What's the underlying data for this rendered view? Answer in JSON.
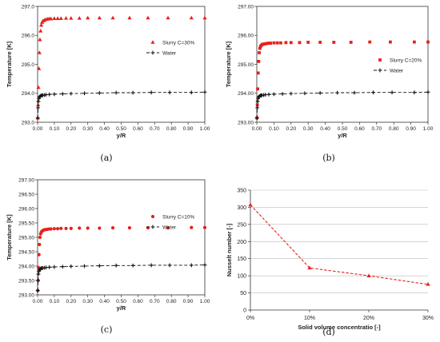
{
  "colors": {
    "slurry": "#e8201c",
    "water": "#111111",
    "axis": "#333333",
    "grid": "#bbbbbb"
  },
  "chart_data": [
    {
      "type": "scatter",
      "caption": "(a)",
      "xlabel": "y/R",
      "ylabel": "Temperature [K]",
      "xlim": [
        0,
        1
      ],
      "ylim": [
        293,
        297
      ],
      "xticks": [
        "0.00",
        "0.10",
        "0.20",
        "0.30",
        "0.40",
        "0.50",
        "0.60",
        "0.70",
        "0.80",
        "0.90",
        "1.00"
      ],
      "yticks": [
        "293.0",
        "294.0",
        "295.0",
        "296.0",
        "297.0"
      ],
      "legend_position": "right",
      "series": [
        {
          "name": "Slurry C=30%",
          "marker": "triangle",
          "x": [
            0.001,
            0.003,
            0.005,
            0.008,
            0.011,
            0.014,
            0.018,
            0.022,
            0.027,
            0.033,
            0.04,
            0.05,
            0.06,
            0.07,
            0.08,
            0.1,
            0.12,
            0.14,
            0.17,
            0.2,
            0.25,
            0.3,
            0.37,
            0.45,
            0.55,
            0.66,
            0.78,
            0.92,
            1.0
          ],
          "y": [
            293.15,
            293.6,
            294.2,
            294.85,
            295.4,
            295.85,
            296.15,
            296.35,
            296.45,
            296.5,
            296.52,
            296.55,
            296.56,
            296.57,
            296.57,
            296.58,
            296.58,
            296.58,
            296.59,
            296.59,
            296.59,
            296.6,
            296.6,
            296.6,
            296.6,
            296.6,
            296.6,
            296.6,
            296.6
          ]
        },
        {
          "name": "Water",
          "marker": "plus",
          "dashed": true,
          "x": [
            0.001,
            0.003,
            0.005,
            0.008,
            0.011,
            0.015,
            0.02,
            0.025,
            0.03,
            0.04,
            0.05,
            0.07,
            0.1,
            0.15,
            0.2,
            0.28,
            0.37,
            0.47,
            0.57,
            0.68,
            0.79,
            0.92,
            1.0
          ],
          "y": [
            293.15,
            293.5,
            293.72,
            293.82,
            293.87,
            293.9,
            293.92,
            293.93,
            293.93,
            293.94,
            293.95,
            293.96,
            293.97,
            293.98,
            293.99,
            294.0,
            294.01,
            294.02,
            294.02,
            294.03,
            294.03,
            294.03,
            294.04
          ]
        }
      ]
    },
    {
      "type": "scatter",
      "caption": "(b)",
      "xlabel": "y/R",
      "ylabel": "Temperature [K]",
      "xlim": [
        0,
        1
      ],
      "ylim": [
        293,
        297
      ],
      "xticks": [
        "0.00",
        "0.10",
        "0.20",
        "0.30",
        "0.40",
        "0.50",
        "0.60",
        "0.70",
        "0.80",
        "0.90",
        "1.00"
      ],
      "yticks": [
        "293.00",
        "294.00",
        "295.00",
        "296.00",
        "297.00"
      ],
      "legend_position": "right",
      "series": [
        {
          "name": "Slurry C=20%",
          "marker": "square",
          "x": [
            0.001,
            0.003,
            0.005,
            0.008,
            0.011,
            0.014,
            0.018,
            0.022,
            0.027,
            0.033,
            0.04,
            0.05,
            0.06,
            0.07,
            0.08,
            0.1,
            0.12,
            0.14,
            0.17,
            0.2,
            0.25,
            0.3,
            0.37,
            0.45,
            0.55,
            0.66,
            0.78,
            0.92,
            1.0
          ],
          "y": [
            293.15,
            293.6,
            294.15,
            294.7,
            295.1,
            295.4,
            295.55,
            295.62,
            295.66,
            295.69,
            295.7,
            295.71,
            295.72,
            295.73,
            295.73,
            295.74,
            295.74,
            295.74,
            295.75,
            295.75,
            295.75,
            295.76,
            295.76,
            295.76,
            295.76,
            295.77,
            295.77,
            295.77,
            295.77
          ]
        },
        {
          "name": "Water",
          "marker": "plus",
          "dashed": true,
          "x": [
            0.001,
            0.003,
            0.005,
            0.008,
            0.011,
            0.015,
            0.02,
            0.025,
            0.03,
            0.04,
            0.05,
            0.07,
            0.1,
            0.15,
            0.2,
            0.28,
            0.37,
            0.47,
            0.57,
            0.68,
            0.79,
            0.92,
            1.0
          ],
          "y": [
            293.15,
            293.5,
            293.72,
            293.82,
            293.87,
            293.9,
            293.92,
            293.93,
            293.93,
            293.94,
            293.95,
            293.96,
            293.97,
            293.98,
            293.99,
            294.0,
            294.01,
            294.02,
            294.02,
            294.03,
            294.03,
            294.03,
            294.04
          ]
        }
      ]
    },
    {
      "type": "scatter",
      "caption": "(c)",
      "xlabel": "y/R",
      "ylabel": "Temperature [K]",
      "xlim": [
        0,
        1
      ],
      "ylim": [
        293,
        297
      ],
      "xticks": [
        "0.00",
        "0.10",
        "0.20",
        "0.30",
        "0.40",
        "0.50",
        "0.60",
        "0.70",
        "0.80",
        "0.90",
        "1.00"
      ],
      "yticks": [
        "293.00",
        "293.50",
        "294.00",
        "294.50",
        "295.00",
        "295.50",
        "296.00",
        "296.50",
        "297.00"
      ],
      "legend_position": "right",
      "series": [
        {
          "name": "Slurry C=10%",
          "marker": "circle",
          "x": [
            0.001,
            0.003,
            0.005,
            0.008,
            0.011,
            0.014,
            0.018,
            0.022,
            0.027,
            0.033,
            0.04,
            0.05,
            0.06,
            0.07,
            0.08,
            0.1,
            0.12,
            0.14,
            0.17,
            0.2,
            0.25,
            0.3,
            0.37,
            0.45,
            0.55,
            0.66,
            0.78,
            0.92,
            1.0
          ],
          "y": [
            293.15,
            293.5,
            293.95,
            294.4,
            294.75,
            295.0,
            295.12,
            295.18,
            295.22,
            295.24,
            295.26,
            295.27,
            295.28,
            295.29,
            295.29,
            295.3,
            295.3,
            295.31,
            295.31,
            295.31,
            295.32,
            295.32,
            295.32,
            295.33,
            295.33,
            295.33,
            295.33,
            295.34,
            295.34
          ]
        },
        {
          "name": "Water",
          "marker": "plus",
          "dashed": true,
          "x": [
            0.001,
            0.003,
            0.005,
            0.008,
            0.011,
            0.015,
            0.02,
            0.025,
            0.03,
            0.04,
            0.05,
            0.07,
            0.1,
            0.15,
            0.2,
            0.28,
            0.37,
            0.47,
            0.57,
            0.68,
            0.79,
            0.92,
            1.0
          ],
          "y": [
            293.15,
            293.5,
            293.72,
            293.82,
            293.87,
            293.9,
            293.92,
            293.93,
            293.93,
            293.94,
            293.95,
            293.96,
            293.97,
            293.98,
            293.99,
            294.0,
            294.01,
            294.02,
            294.02,
            294.03,
            294.03,
            294.03,
            294.04
          ]
        }
      ]
    },
    {
      "type": "line",
      "caption": "(d)",
      "xlabel": "Solid volume concentratio [-]",
      "ylabel": "Nusselt number [-]",
      "categories": [
        "0%",
        "10%",
        "20%",
        "30%"
      ],
      "ylim": [
        0,
        350
      ],
      "yticks": [
        "0",
        "50",
        "100",
        "150",
        "200",
        "250",
        "300",
        "350"
      ],
      "grid": true,
      "series": [
        {
          "marker": "triangle",
          "dashed": true,
          "values": [
            307,
            123,
            100,
            75
          ]
        }
      ]
    }
  ]
}
